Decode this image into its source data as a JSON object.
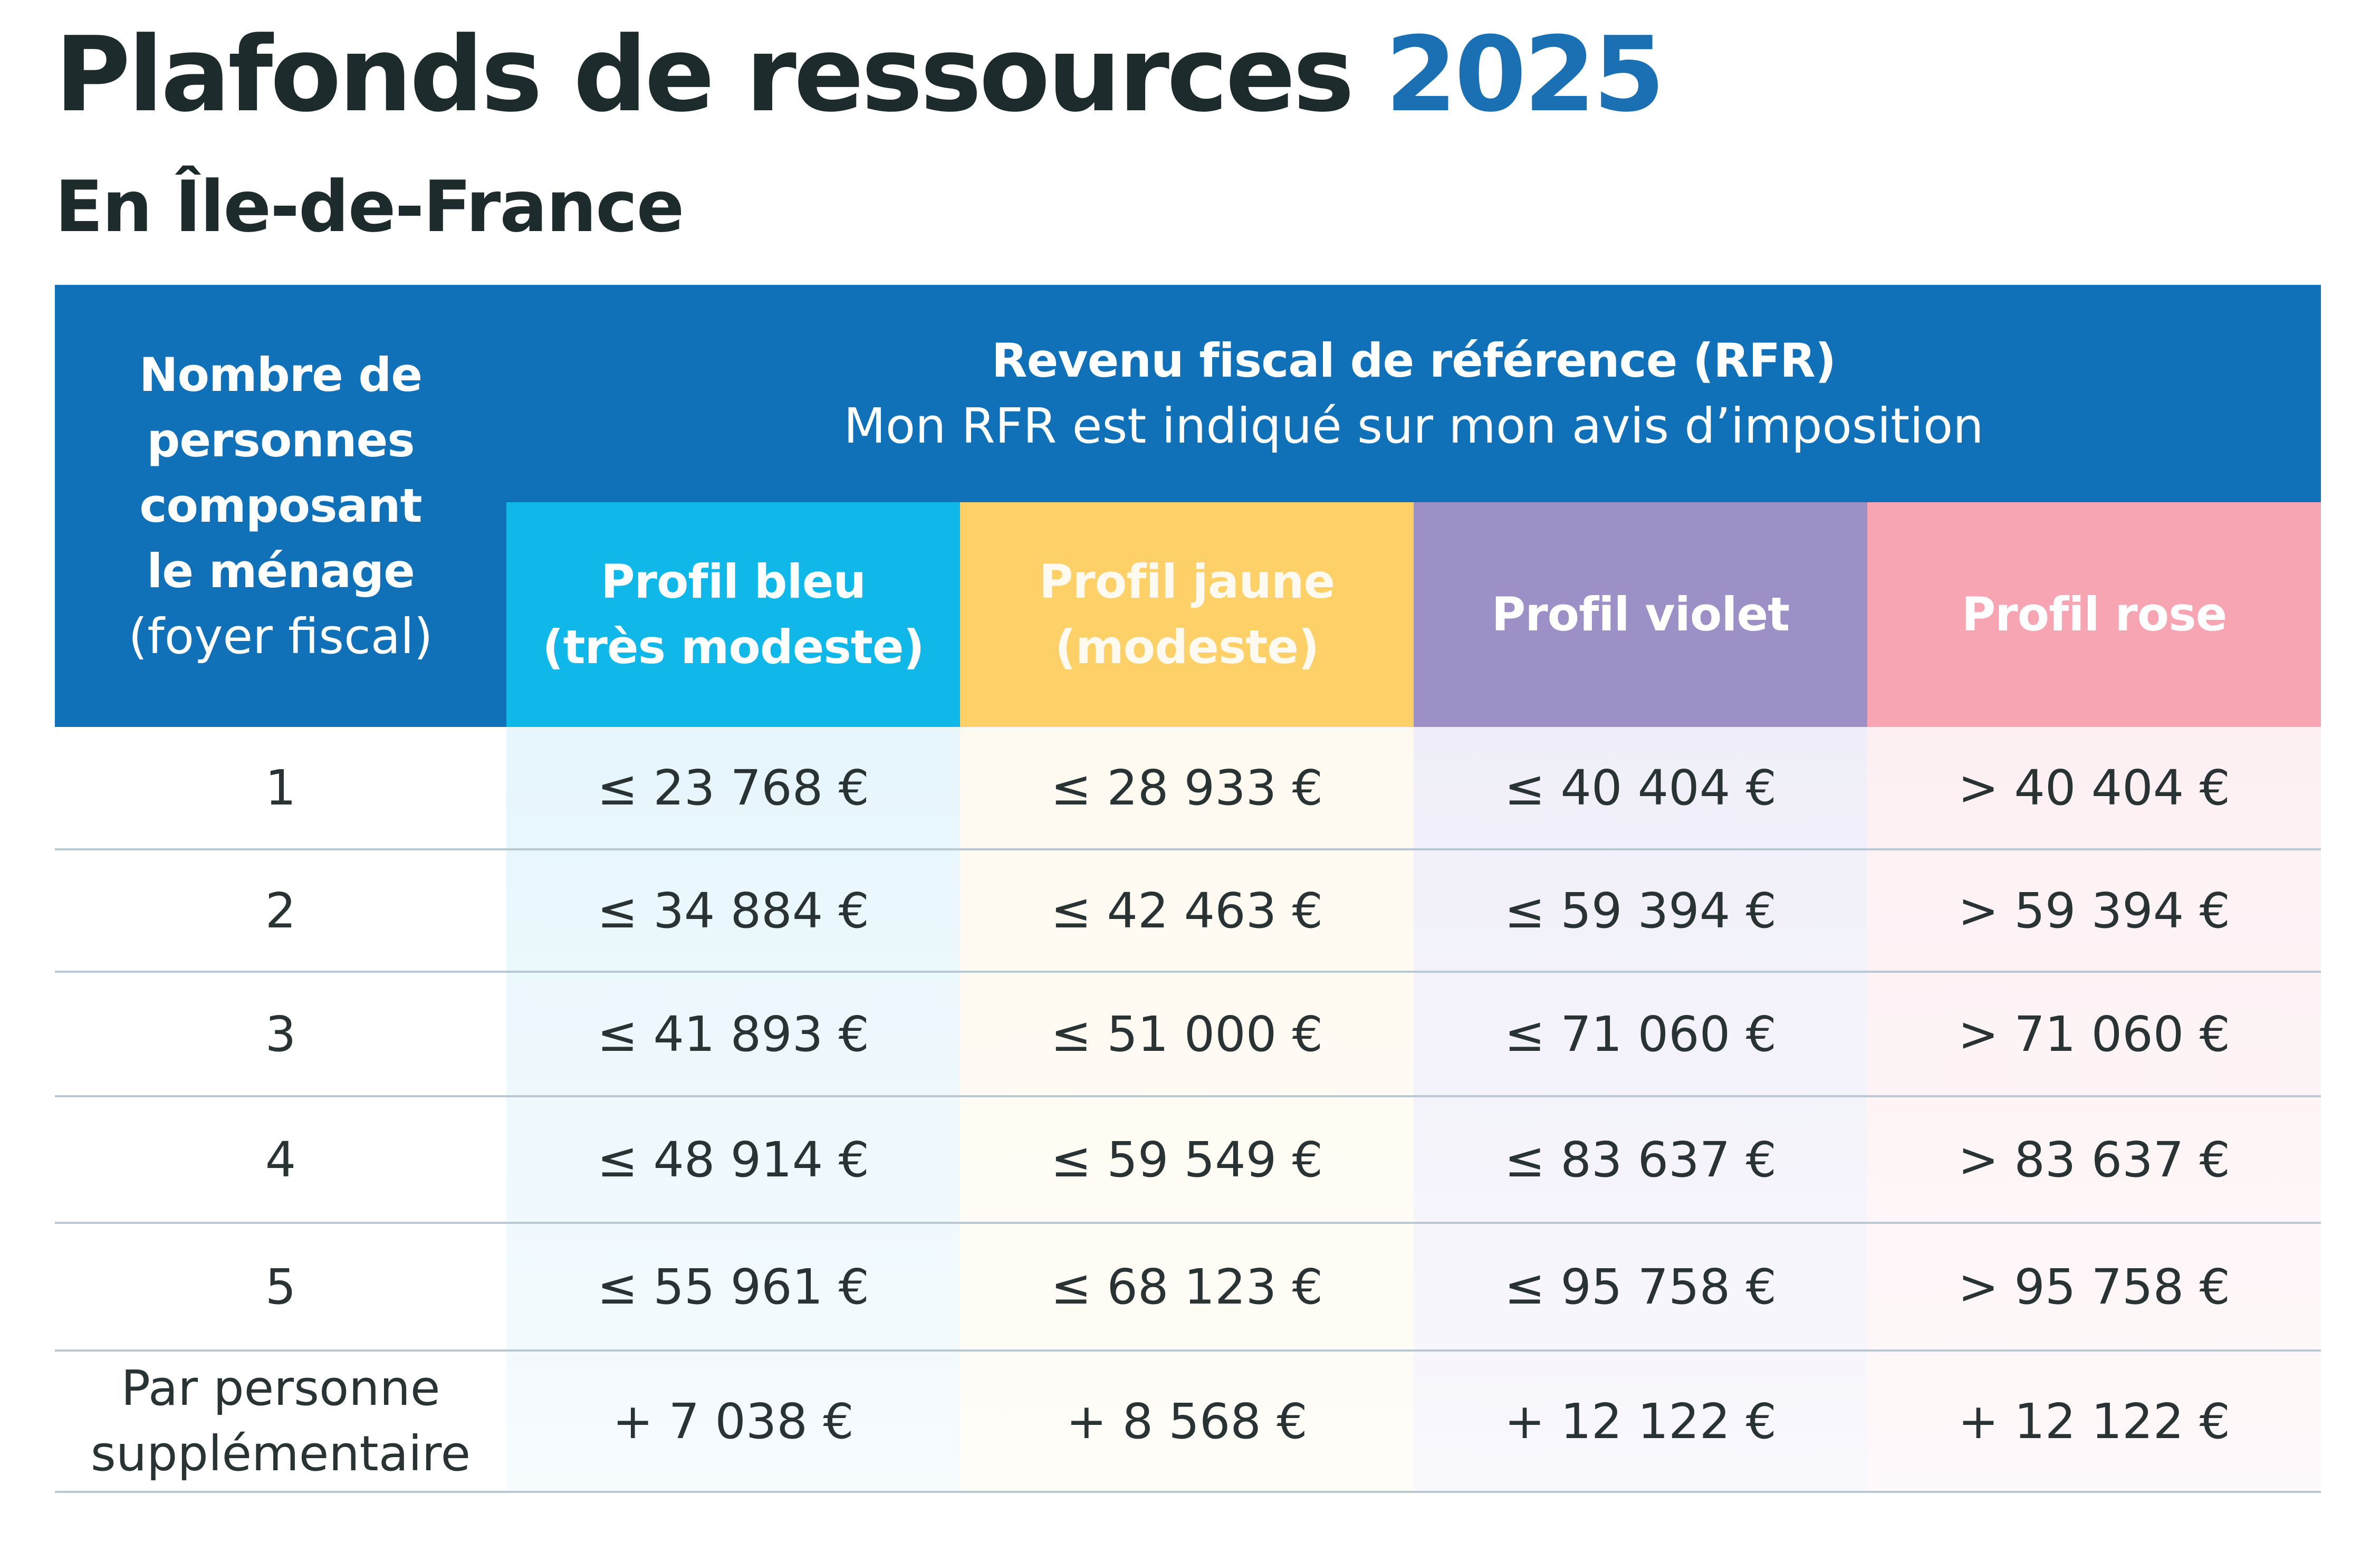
{
  "title": {
    "main": "Plafonds de ressources",
    "year": "2025"
  },
  "subtitle": "En Île-de-France",
  "colors": {
    "header_blue": "#1071b9",
    "title_year": "#1a70b2",
    "profil_bleu": "#0fb8e8",
    "profil_jaune": "#fdd167",
    "profil_violet": "#9c90c7",
    "profil_rose": "#f7a4b3"
  },
  "table": {
    "household_header": {
      "line1": "Nombre de",
      "line2": "personnes",
      "line3": "composant",
      "line4": "le ménage",
      "line5": "(foyer fiscal)"
    },
    "rfr_header": {
      "title": "Revenu fiscal de référence (RFR)",
      "subtitle": "Mon RFR est indiqué sur mon avis d’imposition"
    },
    "profiles": [
      {
        "line1": "Profil bleu",
        "line2": "(très modeste)"
      },
      {
        "line1": "Profil jaune",
        "line2": "(modeste)"
      },
      {
        "line1": "Profil violet"
      },
      {
        "line1": "Profil rose"
      }
    ],
    "rows": [
      {
        "persons": "1",
        "values": [
          "≤ 23 768 €",
          "≤ 28 933 €",
          "≤ 40 404 €",
          "> 40 404 €"
        ]
      },
      {
        "persons": "2",
        "values": [
          "≤ 34 884 €",
          "≤ 42 463 €",
          "≤ 59 394 €",
          "> 59 394 €"
        ]
      },
      {
        "persons": "3",
        "values": [
          "≤ 41 893 €",
          "≤ 51 000 €",
          "≤ 71 060 €",
          "> 71 060 €"
        ]
      },
      {
        "persons": "4",
        "values": [
          "≤ 48 914 €",
          "≤ 59 549 €",
          "≤ 83 637 €",
          "> 83 637 €"
        ]
      },
      {
        "persons": "5",
        "values": [
          "≤ 55 961 €",
          "≤ 68 123 €",
          "≤ 95 758 €",
          "> 95 758 €"
        ]
      }
    ],
    "extra_row": {
      "label_line1": "Par personne",
      "label_line2": "supplémentaire",
      "values": [
        "+ 7 038 €",
        "+ 8 568 €",
        "+ 12 122 €",
        "+ 12 122 €"
      ]
    }
  }
}
